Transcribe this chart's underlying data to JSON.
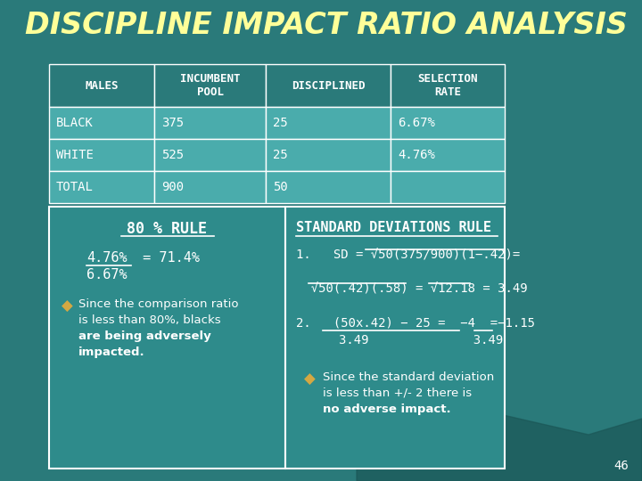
{
  "title": "DISCIPLINE IMPACT RATIO ANALYSIS",
  "title_color": "#FFFF99",
  "background_color": "#2a7a7a",
  "cell_bg": "#4aacac",
  "header_bg": "#2a7a7a",
  "panel_bg": "#2e8b8b",
  "border_color": "#ffffff",
  "text_color": "#ffffff",
  "table_headers": [
    "MALES",
    "INCUMBENT\nPOOL",
    "DISCIPLINED",
    "SELECTION\nRATE"
  ],
  "table_rows": [
    [
      "BLACK",
      "375",
      "25",
      "6.67%"
    ],
    [
      "WHITE",
      "525",
      "25",
      "4.76%"
    ],
    [
      "TOTAL",
      "900",
      "50",
      ""
    ]
  ],
  "rule80_title": "80 % RULE",
  "sd_title": "STANDARD DEVIATIONS RULE",
  "page_num": "46",
  "accent_color": "#d4a843"
}
